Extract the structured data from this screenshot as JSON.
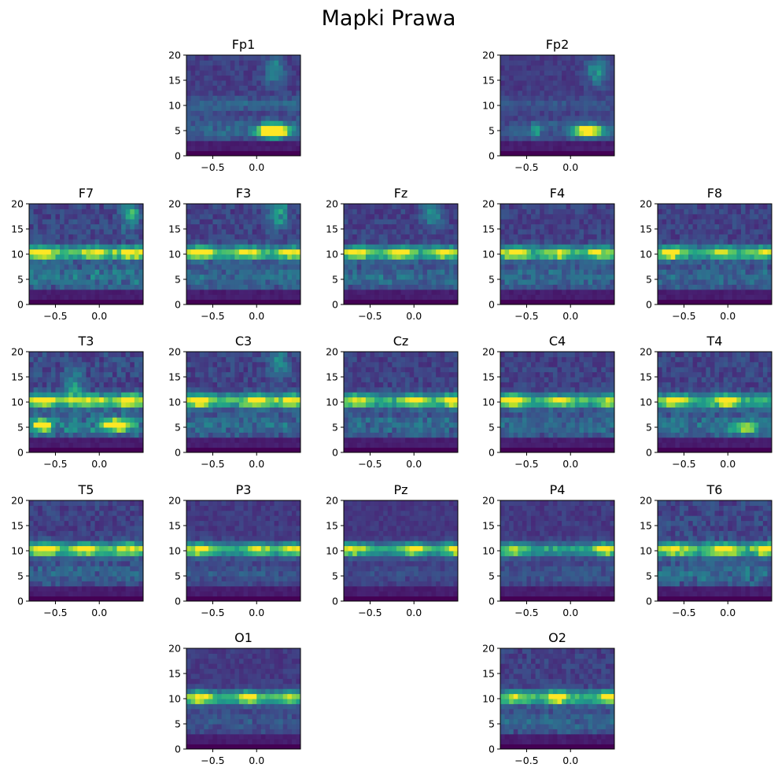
{
  "figure": {
    "title": "Mapki Prawa"
  },
  "chart_data": {
    "type": "heatmap",
    "title": "Mapki Prawa",
    "colormap": "viridis",
    "xlim": [
      -0.8,
      0.5
    ],
    "ylim": [
      0,
      20
    ],
    "xticks": [
      -0.5,
      0.0
    ],
    "yticks": [
      0,
      5,
      10,
      15,
      20
    ],
    "xtick_labels": [
      "−0.5",
      "0.0"
    ],
    "ytick_labels": [
      "0",
      "5",
      "10",
      "15",
      "20"
    ],
    "freq_axis": [
      0,
      1,
      2,
      3,
      4,
      5,
      6,
      7,
      8,
      9,
      10,
      11,
      12,
      13,
      14,
      15,
      16,
      17,
      18,
      19,
      20
    ],
    "panels": [
      {
        "name": "Fp1",
        "alpha": 0.15,
        "alpha_hotspots": [],
        "low": [
          [
            5,
            0.18,
            0.35,
            0.8
          ],
          [
            5,
            0.2,
            0.25,
            0.95
          ]
        ],
        "theta": 0.4,
        "noise": 0.12,
        "upper": [
          [
            17,
            0.2,
            0.4
          ]
        ]
      },
      {
        "name": "Fp2",
        "alpha": 0.1,
        "alpha_hotspots": [],
        "low": [
          [
            5,
            0.2,
            0.35,
            0.95
          ],
          [
            5,
            -0.4,
            0.1,
            0.4
          ]
        ],
        "theta": 0.3,
        "noise": 0.1,
        "upper": [
          [
            17,
            0.3,
            0.5
          ]
        ]
      },
      {
        "name": "F7",
        "alpha": 0.55,
        "alpha_hotspots": [
          [
            -0.65,
            1.0
          ],
          [
            0.35,
            0.9
          ],
          [
            -0.05,
            0.6
          ]
        ],
        "low": [],
        "theta": 0.5,
        "noise": 0.18,
        "upper": [
          [
            18,
            0.35,
            0.5
          ]
        ]
      },
      {
        "name": "F3",
        "alpha": 0.5,
        "alpha_hotspots": [
          [
            -0.65,
            1.0
          ],
          [
            -0.1,
            0.8
          ],
          [
            0.4,
            0.7
          ]
        ],
        "low": [],
        "theta": 0.45,
        "noise": 0.16,
        "upper": [
          [
            18,
            0.25,
            0.5
          ]
        ]
      },
      {
        "name": "Fz",
        "alpha": 0.5,
        "alpha_hotspots": [
          [
            -0.65,
            1.0
          ],
          [
            -0.15,
            0.85
          ],
          [
            0.35,
            0.7
          ]
        ],
        "low": [],
        "theta": 0.4,
        "noise": 0.15,
        "upper": [
          [
            18,
            0.2,
            0.4
          ]
        ]
      },
      {
        "name": "F4",
        "alpha": 0.5,
        "alpha_hotspots": [
          [
            -0.65,
            1.0
          ],
          [
            -0.15,
            0.7
          ],
          [
            0.35,
            0.6
          ]
        ],
        "low": [],
        "theta": 0.4,
        "noise": 0.15,
        "upper": []
      },
      {
        "name": "F8",
        "alpha": 0.5,
        "alpha_hotspots": [
          [
            -0.65,
            1.0
          ],
          [
            -0.05,
            0.7
          ],
          [
            0.4,
            0.6
          ]
        ],
        "low": [],
        "theta": 0.4,
        "noise": 0.15,
        "upper": []
      },
      {
        "name": "T3",
        "alpha": 0.55,
        "alpha_hotspots": [
          [
            -0.65,
            0.85
          ],
          [
            0.35,
            0.95
          ],
          [
            -0.1,
            0.6
          ]
        ],
        "low": [
          [
            5.5,
            0.2,
            0.3,
            0.95
          ],
          [
            5.5,
            -0.65,
            0.2,
            0.8
          ]
        ],
        "theta": 0.55,
        "noise": 0.2,
        "upper": [
          [
            13,
            -0.3,
            0.4,
            0.4
          ]
        ]
      },
      {
        "name": "C3",
        "alpha": 0.55,
        "alpha_hotspots": [
          [
            -0.65,
            0.95
          ],
          [
            0.0,
            1.0
          ],
          [
            0.4,
            0.8
          ]
        ],
        "low": [],
        "theta": 0.45,
        "noise": 0.16,
        "upper": [
          [
            18,
            0.25,
            0.4
          ]
        ]
      },
      {
        "name": "Cz",
        "alpha": 0.5,
        "alpha_hotspots": [
          [
            -0.65,
            0.9
          ],
          [
            -0.0,
            0.9
          ],
          [
            0.45,
            1.0
          ]
        ],
        "low": [],
        "theta": 0.45,
        "noise": 0.15,
        "upper": []
      },
      {
        "name": "C4",
        "alpha": 0.5,
        "alpha_hotspots": [
          [
            -0.65,
            1.0
          ],
          [
            -0.1,
            0.7
          ],
          [
            0.45,
            0.7
          ]
        ],
        "low": [],
        "theta": 0.4,
        "noise": 0.15,
        "upper": []
      },
      {
        "name": "T4",
        "alpha": 0.5,
        "alpha_hotspots": [
          [
            -0.6,
            1.0
          ],
          [
            0.0,
            0.95
          ]
        ],
        "low": [
          [
            5,
            0.2,
            0.3,
            0.6
          ]
        ],
        "theta": 0.45,
        "noise": 0.17,
        "upper": []
      },
      {
        "name": "T5",
        "alpha": 0.55,
        "alpha_hotspots": [
          [
            -0.62,
            1.0
          ],
          [
            -0.15,
            0.8
          ],
          [
            0.35,
            0.7
          ]
        ],
        "low": [],
        "theta": 0.35,
        "noise": 0.15,
        "upper": []
      },
      {
        "name": "P3",
        "alpha": 0.5,
        "alpha_hotspots": [
          [
            -0.65,
            1.0
          ],
          [
            0.0,
            0.7
          ],
          [
            0.4,
            0.6
          ]
        ],
        "low": [],
        "theta": 0.25,
        "noise": 0.1,
        "upper": []
      },
      {
        "name": "Pz",
        "alpha": 0.5,
        "alpha_hotspots": [
          [
            -0.7,
            0.85
          ],
          [
            0.0,
            0.8
          ],
          [
            0.45,
            0.9
          ]
        ],
        "low": [],
        "theta": 0.2,
        "noise": 0.08,
        "upper": []
      },
      {
        "name": "P4",
        "alpha": 0.45,
        "alpha_hotspots": [
          [
            -0.65,
            0.75
          ],
          [
            0.4,
            0.95
          ]
        ],
        "low": [],
        "theta": 0.25,
        "noise": 0.1,
        "upper": []
      },
      {
        "name": "T6",
        "alpha": 0.55,
        "alpha_hotspots": [
          [
            -0.6,
            0.7
          ],
          [
            -0.05,
            1.0
          ],
          [
            0.45,
            0.9
          ]
        ],
        "low": [],
        "theta": 0.4,
        "noise": 0.18,
        "upper": []
      },
      {
        "name": "O1",
        "alpha": 0.5,
        "alpha_hotspots": [
          [
            -0.65,
            1.0
          ],
          [
            -0.1,
            0.85
          ],
          [
            0.4,
            0.6
          ]
        ],
        "low": [],
        "theta": 0.25,
        "noise": 0.1,
        "upper": []
      },
      {
        "name": "O2",
        "alpha": 0.5,
        "alpha_hotspots": [
          [
            -0.15,
            1.0
          ],
          [
            0.45,
            0.8
          ],
          [
            -0.6,
            0.6
          ]
        ],
        "low": [],
        "theta": 0.35,
        "noise": 0.14,
        "upper": []
      }
    ]
  }
}
